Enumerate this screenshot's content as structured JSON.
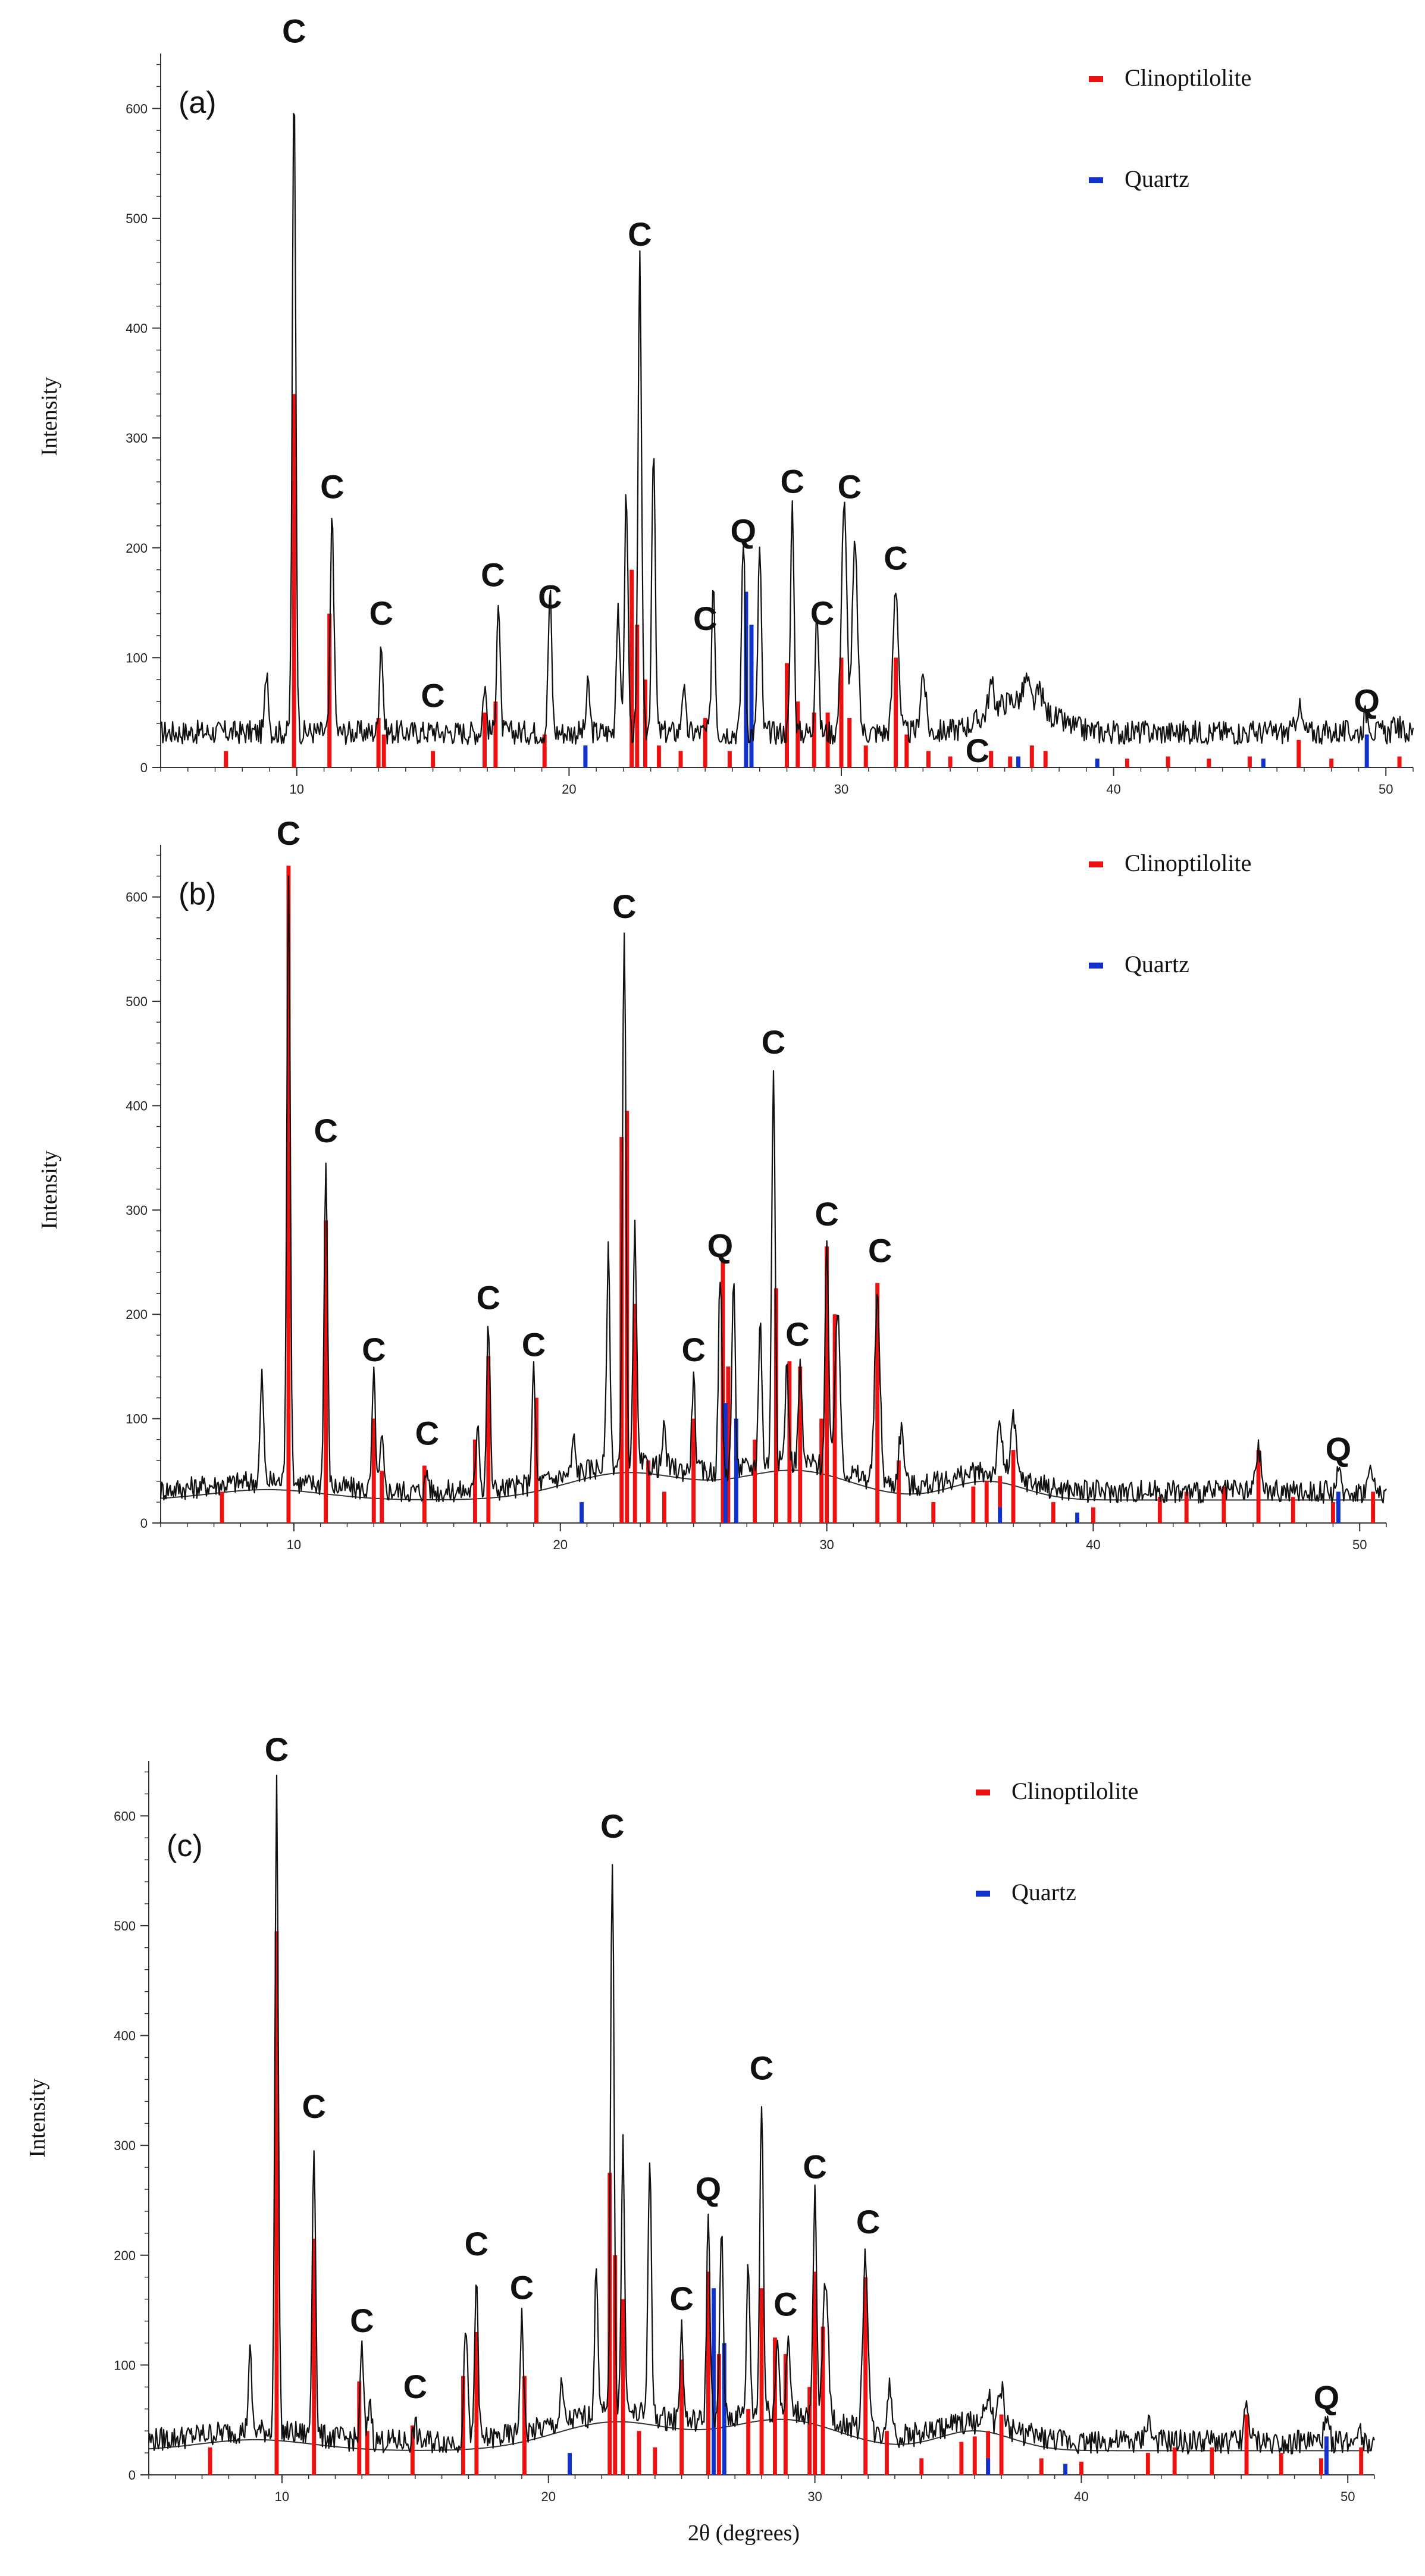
{
  "colors": {
    "clinoptilolite": "#ee1111",
    "quartz": "#1133cc",
    "trace": "#111111",
    "background_curve": "#333333"
  },
  "xlabel": "2θ (degrees)",
  "chart_data": [
    {
      "type": "line",
      "panel": "(a)",
      "ylabel": "Intensity",
      "xlim": [
        5,
        51
      ],
      "ylim": [
        0,
        650
      ],
      "xticks": [
        "10",
        "20",
        "30",
        "40",
        "50"
      ],
      "yticks": [
        "0",
        "100",
        "200",
        "300",
        "400",
        "500",
        "600"
      ],
      "legend": [
        "Clinoptilolite",
        "Quartz"
      ],
      "background_curve": false,
      "trace_peaks": [
        [
          8.9,
          90
        ],
        [
          9.9,
          620
        ],
        [
          11.3,
          230
        ],
        [
          13.1,
          115
        ],
        [
          15,
          35
        ],
        [
          16.9,
          75
        ],
        [
          17.4,
          150
        ],
        [
          19.3,
          160
        ],
        [
          20.7,
          75
        ],
        [
          21.8,
          150
        ],
        [
          22.1,
          250
        ],
        [
          22.6,
          460
        ],
        [
          23.1,
          295
        ],
        [
          24.2,
          75
        ],
        [
          25.3,
          170
        ],
        [
          26.4,
          210
        ],
        [
          27.0,
          200
        ],
        [
          28.2,
          240
        ],
        [
          29.1,
          145
        ],
        [
          30.1,
          240
        ],
        [
          30.5,
          200
        ],
        [
          32.0,
          165
        ],
        [
          33.0,
          85
        ],
        [
          35.5,
          75
        ],
        [
          36.8,
          80
        ],
        [
          37.3,
          70
        ],
        [
          46.8,
          55
        ],
        [
          49.3,
          50
        ],
        [
          50.4,
          40
        ]
      ],
      "clinoptilolite_sticks": [
        [
          7.4,
          15
        ],
        [
          9.9,
          340
        ],
        [
          11.2,
          140
        ],
        [
          13.0,
          45
        ],
        [
          13.2,
          30
        ],
        [
          15.0,
          15
        ],
        [
          16.9,
          50
        ],
        [
          17.3,
          60
        ],
        [
          19.1,
          30
        ],
        [
          22.3,
          180
        ],
        [
          22.5,
          130
        ],
        [
          22.8,
          80
        ],
        [
          23.3,
          20
        ],
        [
          24.1,
          15
        ],
        [
          25.0,
          45
        ],
        [
          25.9,
          15
        ],
        [
          28.0,
          95
        ],
        [
          28.4,
          60
        ],
        [
          29.0,
          50
        ],
        [
          29.5,
          50
        ],
        [
          30.0,
          100
        ],
        [
          30.3,
          45
        ],
        [
          30.9,
          20
        ],
        [
          32.0,
          100
        ],
        [
          32.4,
          30
        ],
        [
          33.2,
          15
        ],
        [
          34.0,
          10
        ],
        [
          35.5,
          15
        ],
        [
          36.2,
          10
        ],
        [
          37.0,
          20
        ],
        [
          37.5,
          15
        ],
        [
          40.5,
          8
        ],
        [
          42.0,
          10
        ],
        [
          43.5,
          8
        ],
        [
          45.0,
          10
        ],
        [
          46.8,
          25
        ],
        [
          48.0,
          8
        ],
        [
          50.5,
          10
        ]
      ],
      "quartz_sticks": [
        [
          20.6,
          20
        ],
        [
          26.5,
          160
        ],
        [
          26.7,
          130
        ],
        [
          36.5,
          10
        ],
        [
          39.4,
          8
        ],
        [
          45.5,
          8
        ],
        [
          49.3,
          30
        ]
      ],
      "peak_labels": [
        {
          "text": "C",
          "x": 9.9,
          "y": 660
        },
        {
          "text": "C",
          "x": 11.3,
          "y": 245
        },
        {
          "text": "C",
          "x": 13.1,
          "y": 130
        },
        {
          "text": "C",
          "x": 15.0,
          "y": 55
        },
        {
          "text": "C",
          "x": 17.2,
          "y": 165
        },
        {
          "text": "C",
          "x": 19.3,
          "y": 145
        },
        {
          "text": "C",
          "x": 22.6,
          "y": 475
        },
        {
          "text": "C",
          "x": 25.0,
          "y": 125
        },
        {
          "text": "Q",
          "x": 26.4,
          "y": 205
        },
        {
          "text": "C",
          "x": 28.2,
          "y": 250
        },
        {
          "text": "C",
          "x": 29.3,
          "y": 130
        },
        {
          "text": "C",
          "x": 30.3,
          "y": 245
        },
        {
          "text": "C",
          "x": 32.0,
          "y": 180
        },
        {
          "text": "C",
          "x": 35.0,
          "y": 5
        },
        {
          "text": "Q",
          "x": 49.3,
          "y": 50
        }
      ]
    },
    {
      "type": "line",
      "panel": "(b)",
      "ylabel": "Intensity",
      "xlim": [
        5,
        51
      ],
      "ylim": [
        0,
        650
      ],
      "xticks": [
        "10",
        "20",
        "30",
        "40",
        "50"
      ],
      "yticks": [
        "0",
        "100",
        "200",
        "300",
        "400",
        "500",
        "600"
      ],
      "legend": [
        "Clinoptilolite",
        "Quartz"
      ],
      "background_curve": true,
      "trace_peaks": [
        [
          8.8,
          140
        ],
        [
          9.8,
          630
        ],
        [
          11.2,
          345
        ],
        [
          13.0,
          140
        ],
        [
          13.3,
          80
        ],
        [
          15.0,
          50
        ],
        [
          16.9,
          100
        ],
        [
          17.3,
          190
        ],
        [
          19.0,
          145
        ],
        [
          20.5,
          80
        ],
        [
          21.8,
          260
        ],
        [
          22.4,
          565
        ],
        [
          22.8,
          280
        ],
        [
          23.9,
          90
        ],
        [
          25.0,
          140
        ],
        [
          26.0,
          240
        ],
        [
          26.5,
          230
        ],
        [
          27.5,
          195
        ],
        [
          28.0,
          435
        ],
        [
          28.5,
          150
        ],
        [
          29.0,
          150
        ],
        [
          30.0,
          270
        ],
        [
          30.4,
          200
        ],
        [
          31.9,
          215
        ],
        [
          32.8,
          90
        ],
        [
          36.5,
          90
        ],
        [
          37.0,
          100
        ],
        [
          46.2,
          70
        ],
        [
          49.2,
          45
        ],
        [
          50.4,
          50
        ]
      ],
      "clinoptilolite_sticks": [
        [
          7.3,
          30
        ],
        [
          9.8,
          630
        ],
        [
          11.2,
          290
        ],
        [
          13.0,
          100
        ],
        [
          13.3,
          50
        ],
        [
          14.9,
          55
        ],
        [
          16.8,
          80
        ],
        [
          17.3,
          160
        ],
        [
          19.1,
          120
        ],
        [
          22.3,
          370
        ],
        [
          22.5,
          395
        ],
        [
          22.8,
          210
        ],
        [
          23.3,
          60
        ],
        [
          23.9,
          30
        ],
        [
          25.0,
          100
        ],
        [
          26.1,
          250
        ],
        [
          26.3,
          150
        ],
        [
          27.3,
          80
        ],
        [
          28.1,
          225
        ],
        [
          28.6,
          155
        ],
        [
          29.0,
          150
        ],
        [
          29.8,
          100
        ],
        [
          30.0,
          265
        ],
        [
          30.3,
          200
        ],
        [
          31.9,
          230
        ],
        [
          32.7,
          60
        ],
        [
          34.0,
          20
        ],
        [
          35.5,
          35
        ],
        [
          36.0,
          40
        ],
        [
          36.5,
          45
        ],
        [
          37.0,
          70
        ],
        [
          38.5,
          20
        ],
        [
          40.0,
          15
        ],
        [
          42.5,
          25
        ],
        [
          43.5,
          30
        ],
        [
          44.9,
          35
        ],
        [
          46.2,
          70
        ],
        [
          47.5,
          25
        ],
        [
          49.0,
          20
        ],
        [
          50.5,
          30
        ]
      ],
      "quartz_sticks": [
        [
          20.8,
          20
        ],
        [
          26.2,
          115
        ],
        [
          26.6,
          100
        ],
        [
          36.5,
          15
        ],
        [
          39.4,
          10
        ],
        [
          49.2,
          30
        ]
      ],
      "peak_labels": [
        {
          "text": "C",
          "x": 9.8,
          "y": 650
        },
        {
          "text": "C",
          "x": 11.2,
          "y": 365
        },
        {
          "text": "C",
          "x": 13.0,
          "y": 155
        },
        {
          "text": "C",
          "x": 15.0,
          "y": 75
        },
        {
          "text": "C",
          "x": 17.3,
          "y": 205
        },
        {
          "text": "C",
          "x": 19.0,
          "y": 160
        },
        {
          "text": "C",
          "x": 22.4,
          "y": 580
        },
        {
          "text": "C",
          "x": 25.0,
          "y": 155
        },
        {
          "text": "Q",
          "x": 26.0,
          "y": 255
        },
        {
          "text": "C",
          "x": 28.0,
          "y": 450
        },
        {
          "text": "C",
          "x": 28.9,
          "y": 170
        },
        {
          "text": "C",
          "x": 30.0,
          "y": 285
        },
        {
          "text": "C",
          "x": 32.0,
          "y": 250
        },
        {
          "text": "Q",
          "x": 49.2,
          "y": 60
        }
      ]
    },
    {
      "type": "line",
      "panel": "(c)",
      "ylabel": "Intensity",
      "xlabel": "2θ (degrees)",
      "xlim": [
        5,
        51
      ],
      "ylim": [
        0,
        650
      ],
      "xticks": [
        "10",
        "20",
        "30",
        "40",
        "50"
      ],
      "yticks": [
        "0",
        "100",
        "200",
        "300",
        "400",
        "500",
        "600"
      ],
      "legend": [
        "Clinoptilolite",
        "Quartz"
      ],
      "background_curve": true,
      "trace_peaks": [
        [
          8.8,
          110
        ],
        [
          9.8,
          630
        ],
        [
          11.2,
          305
        ],
        [
          13.0,
          115
        ],
        [
          13.3,
          70
        ],
        [
          15.0,
          45
        ],
        [
          16.9,
          140
        ],
        [
          17.3,
          180
        ],
        [
          19.0,
          145
        ],
        [
          20.5,
          80
        ],
        [
          21.8,
          190
        ],
        [
          22.4,
          565
        ],
        [
          22.8,
          300
        ],
        [
          23.8,
          290
        ],
        [
          25.0,
          135
        ],
        [
          26.0,
          235
        ],
        [
          26.5,
          225
        ],
        [
          27.5,
          190
        ],
        [
          28.0,
          345
        ],
        [
          28.6,
          125
        ],
        [
          29.0,
          125
        ],
        [
          30.0,
          255
        ],
        [
          30.4,
          180
        ],
        [
          31.9,
          200
        ],
        [
          32.8,
          80
        ],
        [
          36.5,
          75
        ],
        [
          37.0,
          80
        ],
        [
          42.5,
          50
        ],
        [
          46.2,
          60
        ],
        [
          49.2,
          45
        ],
        [
          50.4,
          45
        ]
      ],
      "clinoptilolite_sticks": [
        [
          7.3,
          25
        ],
        [
          9.8,
          495
        ],
        [
          11.2,
          215
        ],
        [
          12.9,
          85
        ],
        [
          13.2,
          40
        ],
        [
          14.9,
          45
        ],
        [
          16.8,
          90
        ],
        [
          17.3,
          130
        ],
        [
          19.1,
          90
        ],
        [
          22.3,
          275
        ],
        [
          22.5,
          200
        ],
        [
          22.8,
          160
        ],
        [
          23.4,
          40
        ],
        [
          24.0,
          25
        ],
        [
          25.0,
          105
        ],
        [
          26.0,
          185
        ],
        [
          26.4,
          110
        ],
        [
          27.5,
          60
        ],
        [
          28.0,
          170
        ],
        [
          28.5,
          125
        ],
        [
          28.9,
          110
        ],
        [
          29.8,
          80
        ],
        [
          30.0,
          185
        ],
        [
          30.3,
          135
        ],
        [
          31.9,
          180
        ],
        [
          32.7,
          40
        ],
        [
          34.0,
          15
        ],
        [
          35.5,
          30
        ],
        [
          36.0,
          35
        ],
        [
          36.5,
          40
        ],
        [
          37.0,
          55
        ],
        [
          38.5,
          15
        ],
        [
          40.0,
          12
        ],
        [
          42.5,
          20
        ],
        [
          43.5,
          25
        ],
        [
          44.9,
          25
        ],
        [
          46.2,
          55
        ],
        [
          47.5,
          20
        ],
        [
          49.0,
          15
        ],
        [
          50.5,
          25
        ]
      ],
      "quartz_sticks": [
        [
          20.8,
          20
        ],
        [
          26.2,
          170
        ],
        [
          26.6,
          120
        ],
        [
          36.5,
          15
        ],
        [
          39.4,
          10
        ],
        [
          49.2,
          35
        ]
      ],
      "peak_labels": [
        {
          "text": "C",
          "x": 9.8,
          "y": 650
        },
        {
          "text": "C",
          "x": 11.2,
          "y": 325
        },
        {
          "text": "C",
          "x": 13.0,
          "y": 130
        },
        {
          "text": "C",
          "x": 15.0,
          "y": 70
        },
        {
          "text": "C",
          "x": 17.3,
          "y": 200
        },
        {
          "text": "C",
          "x": 19.0,
          "y": 160
        },
        {
          "text": "C",
          "x": 22.4,
          "y": 580
        },
        {
          "text": "C",
          "x": 25.0,
          "y": 150
        },
        {
          "text": "Q",
          "x": 26.0,
          "y": 250
        },
        {
          "text": "C",
          "x": 28.0,
          "y": 360
        },
        {
          "text": "C",
          "x": 28.9,
          "y": 145
        },
        {
          "text": "C",
          "x": 30.0,
          "y": 270
        },
        {
          "text": "C",
          "x": 32.0,
          "y": 220
        },
        {
          "text": "Q",
          "x": 49.2,
          "y": 60
        }
      ]
    }
  ]
}
